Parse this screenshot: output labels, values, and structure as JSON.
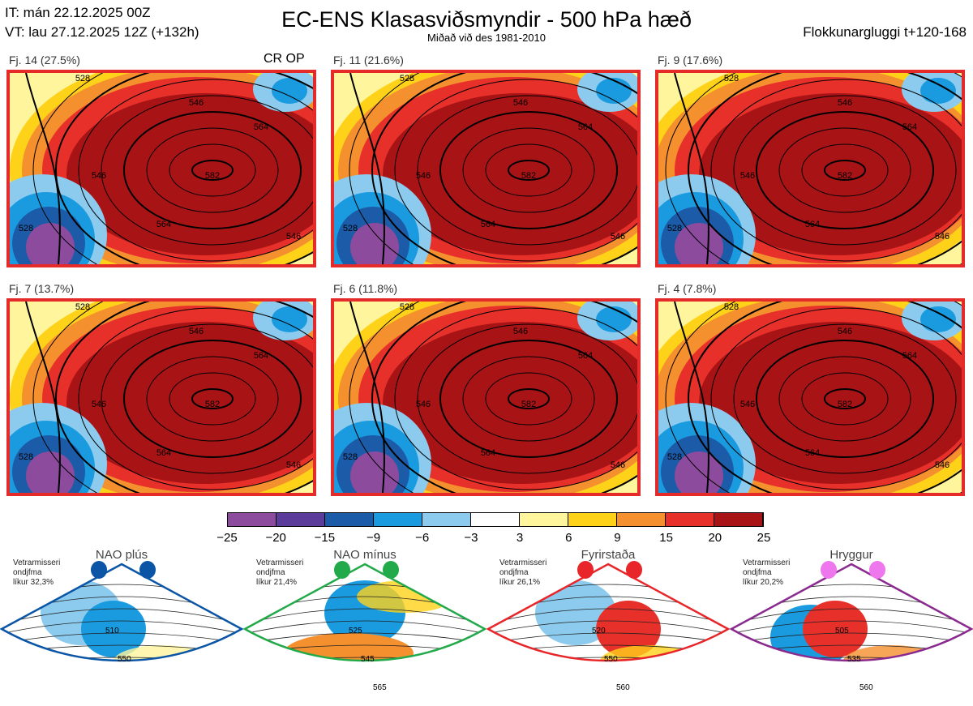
{
  "header": {
    "it": "IT: mán 22.12.2025 00Z",
    "vt": "VT: lau 27.12.2025 12Z  (+132h)",
    "title": "EC-ENS Klasasviðsmyndir - 500 hPa hæð",
    "subtitle": "Miðað við des 1981-2010",
    "window": "Flokkunargluggi t+120-168",
    "crop": "CR OP"
  },
  "panels": [
    {
      "label": "Fj. 14 (27.5%)",
      "contours": [
        "528",
        "546",
        "564",
        "582",
        "546",
        "564",
        "528",
        "546"
      ]
    },
    {
      "label": "Fj. 11 (21.6%)",
      "contours": [
        "528",
        "546",
        "564",
        "582",
        "546",
        "564",
        "528",
        "546"
      ]
    },
    {
      "label": "Fj. 9 (17.6%)",
      "contours": [
        "528",
        "546",
        "564",
        "582",
        "546",
        "564",
        "528",
        "546"
      ]
    },
    {
      "label": "Fj. 7 (13.7%)",
      "contours": [
        "528",
        "546",
        "564",
        "582",
        "546",
        "564",
        "528",
        "546"
      ]
    },
    {
      "label": "Fj. 6 (11.8%)",
      "contours": [
        "528",
        "546",
        "564",
        "582",
        "546",
        "564",
        "528",
        "546"
      ]
    },
    {
      "label": "Fj. 4 (7.8%)",
      "contours": [
        "528",
        "546",
        "564",
        "582",
        "546",
        "564",
        "528",
        "546"
      ]
    }
  ],
  "colorbar": {
    "labels": [
      "−25",
      "−20",
      "−15",
      "−9",
      "−6",
      "−3",
      "3",
      "6",
      "9",
      "15",
      "20",
      "25"
    ],
    "colors": [
      "#8c4b9d",
      "#5b3c9b",
      "#1c5ba8",
      "#1a9be0",
      "#8ccbee",
      "#ffffff",
      "#fff59d",
      "#ffd21a",
      "#f5902e",
      "#e8302a",
      "#a81416"
    ]
  },
  "regimes": [
    {
      "name": "NAO plús",
      "info": [
        "Vetrarmisseri",
        "ondjfma",
        "líkur 32,3%"
      ],
      "color": "#0a55a5",
      "contours": [
        "510",
        "550"
      ]
    },
    {
      "name": "NAO mínus",
      "info": [
        "Vetrarmisseri",
        "ondjfma",
        "líkur 21,4%"
      ],
      "color": "#22aa4a",
      "contours": [
        "525",
        "545",
        "565"
      ]
    },
    {
      "name": "Fyrirstaða",
      "info": [
        "Vetrarmisseri",
        "ondjfma",
        "líkur 26,1%"
      ],
      "color": "#e8262a",
      "contours": [
        "520",
        "550",
        "560"
      ]
    },
    {
      "name": "Hryggur",
      "info": [
        "Vetrarmisseri",
        "ondjfma",
        "líkur 20,2%"
      ],
      "color": "#8a2a8f",
      "dot": "#ee77ee",
      "contours": [
        "505",
        "535",
        "560"
      ]
    }
  ]
}
